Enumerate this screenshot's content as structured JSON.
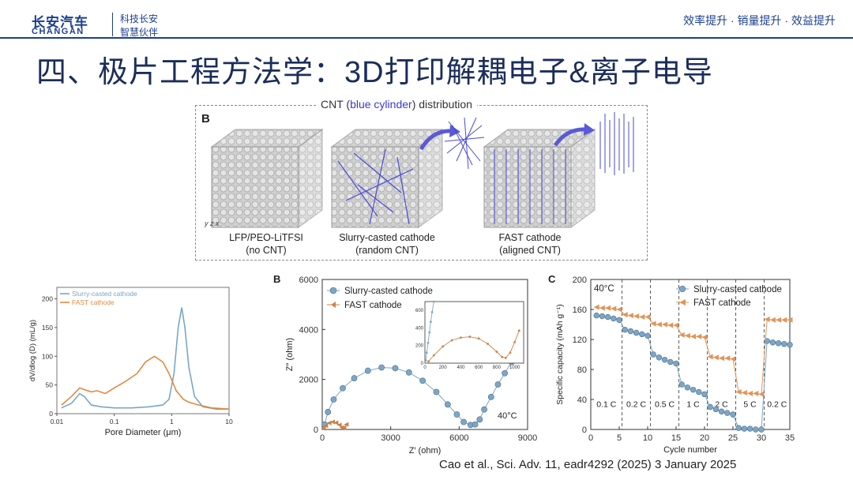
{
  "header": {
    "logo_cn": "长安汽车",
    "logo_en": "CHANGAN",
    "slogan_line1": "科技长安",
    "slogan_line2": "智慧伙伴",
    "right_text": "效率提升 · 销量提升 · 效益提升"
  },
  "title": "四、极片工程方法学：3D打印解耦电子&离子电导",
  "panel_b": {
    "title_prefix": "CNT (",
    "title_blue": "blue cylinder",
    "title_suffix": ") distribution",
    "letter": "B",
    "axis_label": "y z x",
    "cubes": [
      {
        "line1": "LFP/PEO-LiTFSI",
        "line2": "(no CNT)"
      },
      {
        "line1": "Slurry-casted cathode",
        "line2": "(random CNT)"
      },
      {
        "line1": "FAST cathode",
        "line2": "(aligned CNT)"
      }
    ]
  },
  "chart_data": [
    {
      "type": "line",
      "xlabel": "Pore Diameter (μm)",
      "ylabel": "dV/dlog (D) (mL/g)",
      "xscale": "log",
      "xlim": [
        0.01,
        10
      ],
      "ylim": [
        0,
        220
      ],
      "xticks": [
        "0.01",
        "0.1",
        "1",
        "10"
      ],
      "yticks": [
        0,
        50,
        100,
        150,
        200
      ],
      "legend_position": "top-left",
      "series": [
        {
          "name": "Slurry-casted cathode",
          "color": "#7aa6c8",
          "x": [
            0.012,
            0.018,
            0.025,
            0.03,
            0.04,
            0.06,
            0.1,
            0.2,
            0.4,
            0.7,
            0.9,
            1.1,
            1.3,
            1.5,
            1.7,
            2.0,
            2.5,
            3.5,
            6,
            10
          ],
          "y": [
            10,
            18,
            35,
            30,
            15,
            12,
            10,
            10,
            12,
            15,
            25,
            70,
            150,
            185,
            150,
            80,
            30,
            12,
            8,
            8
          ]
        },
        {
          "name": "FAST cathode",
          "color": "#e08a3c",
          "x": [
            0.012,
            0.018,
            0.025,
            0.03,
            0.04,
            0.05,
            0.07,
            0.1,
            0.15,
            0.25,
            0.35,
            0.5,
            0.7,
            0.9,
            1.2,
            1.6,
            2.0,
            3.0,
            5,
            10
          ],
          "y": [
            15,
            30,
            45,
            42,
            38,
            40,
            35,
            45,
            55,
            70,
            90,
            100,
            90,
            70,
            40,
            25,
            20,
            15,
            10,
            8
          ]
        }
      ]
    },
    {
      "type": "scatter",
      "panel_letter": "B",
      "xlabel": "Z′ (ohm)",
      "ylabel": "Z″ (ohm)",
      "xlim": [
        0,
        9000
      ],
      "ylim": [
        0,
        6000
      ],
      "xticks": [
        0,
        3000,
        6000,
        9000
      ],
      "yticks": [
        0,
        2000,
        4000,
        6000
      ],
      "annotation": "40°C",
      "legend_position": "top-left",
      "series": [
        {
          "name": "Slurry-casted cathode",
          "color": "#7ea6c4",
          "x": [
            100,
            250,
            500,
            900,
            1400,
            2000,
            2600,
            3200,
            3800,
            4400,
            5000,
            5500,
            5900,
            6200,
            6500,
            6700,
            6900,
            7100,
            7400,
            7700,
            8000,
            8300
          ],
          "y": [
            200,
            700,
            1200,
            1650,
            2050,
            2350,
            2480,
            2450,
            2280,
            1950,
            1500,
            1000,
            600,
            300,
            180,
            200,
            400,
            800,
            1300,
            1800,
            2250,
            2700
          ]
        },
        {
          "name": "FAST cathode",
          "color": "#c9824a",
          "x": [
            50,
            150,
            300,
            450,
            600,
            750,
            850,
            950,
            1050
          ],
          "y": [
            40,
            150,
            260,
            300,
            270,
            180,
            80,
            60,
            200
          ]
        }
      ],
      "inset": {
        "xlim": [
          0,
          1100
        ],
        "ylim": [
          0,
          700
        ],
        "xticks": [
          0,
          200,
          400,
          600,
          800,
          1000
        ],
        "yticks": [
          0,
          200,
          400,
          600
        ],
        "series": [
          {
            "name": "Slurry-casted cathode",
            "color": "#7ea6c4",
            "x": [
              10,
              20,
              35,
              50,
              65,
              80,
              100
            ],
            "y": [
              30,
              120,
              230,
              350,
              470,
              580,
              700
            ]
          },
          {
            "name": "FAST cathode",
            "color": "#c9824a",
            "x": [
              40,
              100,
              200,
              300,
              400,
              500,
              600,
              700,
              800,
              860,
              900,
              950,
              1000,
              1050
            ],
            "y": [
              20,
              90,
              190,
              260,
              290,
              300,
              280,
              220,
              130,
              70,
              60,
              120,
              240,
              370
            ]
          }
        ]
      }
    },
    {
      "type": "scatter",
      "panel_letter": "C",
      "xlabel": "Cycle number",
      "ylabel": "Specific capacity (mAh g⁻¹)",
      "xlim": [
        0,
        35
      ],
      "ylim": [
        0,
        200
      ],
      "xticks": [
        0,
        5,
        10,
        15,
        20,
        25,
        30,
        35
      ],
      "yticks": [
        0,
        40,
        80,
        120,
        160,
        200
      ],
      "annotation": "40°C",
      "rate_labels": [
        "0.1 C",
        "0.2 C",
        "0.5 C",
        "1 C",
        "2 C",
        "5 C",
        "0.2 C"
      ],
      "rate_boundaries": [
        5.5,
        10.5,
        15.5,
        20.5,
        25.5,
        30.5
      ],
      "legend_position": "top-right",
      "series": [
        {
          "name": "Slurry-casted cathode",
          "color": "#7ea6c4",
          "x": [
            1,
            2,
            3,
            4,
            5,
            6,
            7,
            8,
            9,
            10,
            11,
            12,
            13,
            14,
            15,
            16,
            17,
            18,
            19,
            20,
            21,
            22,
            23,
            24,
            25,
            26,
            27,
            28,
            29,
            30,
            31,
            32,
            33,
            34,
            35
          ],
          "y": [
            152,
            151,
            150,
            148,
            146,
            133,
            131,
            129,
            127,
            125,
            100,
            96,
            93,
            90,
            88,
            60,
            56,
            53,
            50,
            47,
            30,
            27,
            24,
            22,
            20,
            2,
            1,
            1,
            0,
            0,
            118,
            116,
            115,
            114,
            113
          ]
        },
        {
          "name": "FAST cathode",
          "color": "#e0955a",
          "x": [
            1,
            2,
            3,
            4,
            5,
            6,
            7,
            8,
            9,
            10,
            11,
            12,
            13,
            14,
            15,
            16,
            17,
            18,
            19,
            20,
            21,
            22,
            23,
            24,
            25,
            26,
            27,
            28,
            29,
            30,
            31,
            32,
            33,
            34,
            35
          ],
          "y": [
            163,
            162,
            162,
            161,
            160,
            153,
            152,
            151,
            150,
            150,
            141,
            140,
            140,
            139,
            139,
            126,
            125,
            124,
            124,
            123,
            97,
            96,
            95,
            95,
            94,
            50,
            49,
            48,
            48,
            47,
            147,
            146,
            146,
            146,
            146
          ]
        }
      ]
    }
  ],
  "citation": "Cao et al., Sci. Adv. 11, eadr4292 (2025) 3 January 2025"
}
